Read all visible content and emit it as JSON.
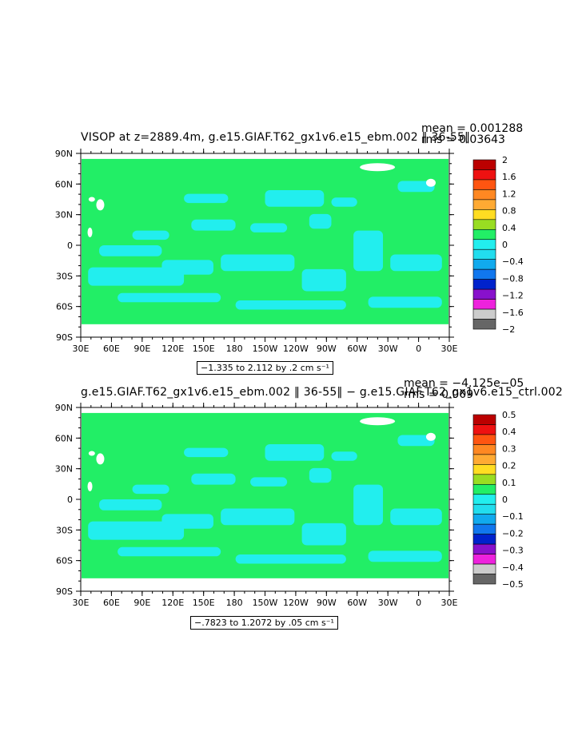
{
  "panels": [
    {
      "title": "VISOP at z=2889.4m, g.e15.GIAF.T62_gx1v6.e15_ebm.002 ‖ 36-55‖",
      "mean": "mean = 0.001288",
      "rms": "rms = 0.03643",
      "range": "−1.335 to 2.112 by .2 cm s⁻¹",
      "colorbar_labels": [
        "2",
        "1.6",
        "1.2",
        "0.8",
        "0.4",
        "0",
        "−0.4",
        "−0.8",
        "−1.2",
        "−1.6",
        "−2"
      ]
    },
    {
      "title": "g.e15.GIAF.T62_gx1v6.e15_ebm.002 ‖ 36-55‖ − g.e15.GIAF.T62_gx1v6.e15_ctrl.002",
      "mean": "mean = −4.125e−05",
      "rms": "rms = 0.009",
      "range": "−.7823 to 1.2072 by .05 cm s⁻¹",
      "colorbar_labels": [
        "0.5",
        "0.4",
        "0.3",
        "0.2",
        "0.1",
        "0",
        "−0.1",
        "−0.2",
        "−0.3",
        "−0.4",
        "−0.5"
      ]
    }
  ],
  "axes": {
    "lat_labels": [
      "90N",
      "60N",
      "30N",
      "0",
      "30S",
      "60S",
      "90S"
    ],
    "lon_labels": [
      "30E",
      "60E",
      "90E",
      "120E",
      "150E",
      "180",
      "150W",
      "120W",
      "90W",
      "60W",
      "30W",
      "0",
      "30E"
    ]
  },
  "colors": {
    "ocean_dominant": "#22ee66",
    "ocean_light": "#22eeee",
    "land": "#ffffff",
    "colorbar": [
      "#bb0000",
      "#ee1111",
      "#ff5511",
      "#ff8822",
      "#ffaa33",
      "#ffdd22",
      "#99dd22",
      "#22ee66",
      "#22eeee",
      "#22ddee",
      "#11aaee",
      "#1177ee",
      "#0022cc",
      "#8811cc",
      "#ee22dd",
      "#cccccc",
      "#666666"
    ]
  }
}
